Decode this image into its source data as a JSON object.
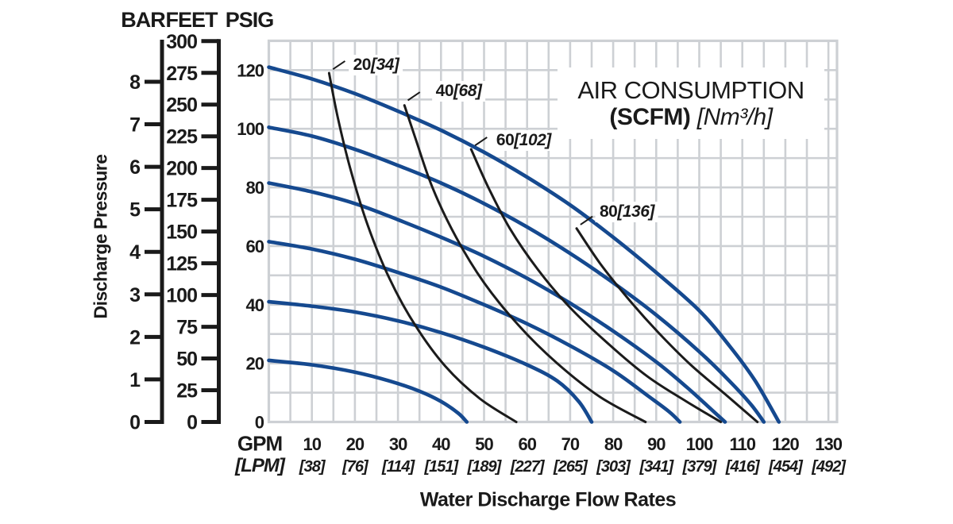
{
  "title": {
    "line1": "AIR CONSUMPTION",
    "scfm": "(SCFM)",
    "nm3h": "[Nm³/h]"
  },
  "axes": {
    "x_title": "Water Discharge Flow Rates",
    "y_title": "Discharge Pressure",
    "x": {
      "unit_primary": "GPM",
      "unit_secondary": "[LPM]",
      "gpm_ticks": [
        10,
        20,
        30,
        40,
        50,
        60,
        70,
        80,
        90,
        100,
        110,
        120,
        130
      ],
      "lpm_ticks": [
        "[38]",
        "[76]",
        "[114]",
        "[151]",
        "[189]",
        "[227]",
        "[265]",
        "[303]",
        "[341]",
        "[379]",
        "[416]",
        "[454]",
        "[492]"
      ]
    },
    "y": {
      "bar": {
        "header": "BAR",
        "ticks": [
          0,
          1,
          2,
          3,
          4,
          5,
          6,
          7,
          8
        ]
      },
      "feet": {
        "header": "FEET",
        "ticks": [
          0,
          25,
          50,
          75,
          100,
          125,
          150,
          175,
          200,
          225,
          250,
          275,
          300
        ]
      },
      "psig": {
        "header": "PSIG",
        "ticks": [
          0,
          20,
          40,
          60,
          80,
          100,
          120
        ]
      }
    }
  },
  "chart_data": {
    "type": "line",
    "x_unit": "GPM",
    "y_unit": "PSIG",
    "xlim": [
      0,
      132
    ],
    "ylim": [
      0,
      130
    ],
    "grid": {
      "x_step": 5,
      "y_step": 10,
      "on": true
    },
    "performance_curves": [
      {
        "name": "120 psig air supply",
        "air_psig": 120,
        "points": [
          [
            0,
            121
          ],
          [
            10,
            117
          ],
          [
            20,
            112
          ],
          [
            30,
            106
          ],
          [
            40,
            99.5
          ],
          [
            50,
            92
          ],
          [
            60,
            83.5
          ],
          [
            70,
            74
          ],
          [
            80,
            63
          ],
          [
            90,
            51
          ],
          [
            100,
            38
          ],
          [
            107,
            26
          ],
          [
            113,
            14
          ],
          [
            118.5,
            0
          ]
        ]
      },
      {
        "name": "100 psig air supply",
        "air_psig": 100,
        "points": [
          [
            0,
            100.5
          ],
          [
            10,
            97.5
          ],
          [
            20,
            93
          ],
          [
            30,
            87.5
          ],
          [
            40,
            81.5
          ],
          [
            50,
            74.5
          ],
          [
            60,
            66.5
          ],
          [
            70,
            57.5
          ],
          [
            80,
            47.5
          ],
          [
            90,
            36.5
          ],
          [
            100,
            24
          ],
          [
            107,
            14
          ],
          [
            112,
            6
          ],
          [
            115,
            0
          ]
        ]
      },
      {
        "name": "80 psig air supply",
        "air_psig": 80,
        "points": [
          [
            0,
            81.5
          ],
          [
            10,
            78.5
          ],
          [
            20,
            74.5
          ],
          [
            30,
            69
          ],
          [
            40,
            63
          ],
          [
            50,
            56.5
          ],
          [
            60,
            49
          ],
          [
            70,
            40.5
          ],
          [
            80,
            31
          ],
          [
            90,
            20.5
          ],
          [
            97,
            12
          ],
          [
            103,
            4
          ],
          [
            106,
            0
          ]
        ]
      },
      {
        "name": "60 psig air supply",
        "air_psig": 60,
        "points": [
          [
            0,
            61.5
          ],
          [
            10,
            59
          ],
          [
            20,
            55.5
          ],
          [
            30,
            51
          ],
          [
            40,
            46
          ],
          [
            50,
            40
          ],
          [
            60,
            33.5
          ],
          [
            70,
            26
          ],
          [
            80,
            17.5
          ],
          [
            88,
            9
          ],
          [
            93,
            3.5
          ],
          [
            95.5,
            0
          ]
        ]
      },
      {
        "name": "40 psig air supply",
        "air_psig": 40,
        "points": [
          [
            0,
            41
          ],
          [
            10,
            39.5
          ],
          [
            20,
            37.5
          ],
          [
            30,
            34.5
          ],
          [
            40,
            30.5
          ],
          [
            50,
            25.5
          ],
          [
            60,
            19.5
          ],
          [
            67,
            14
          ],
          [
            72,
            7
          ],
          [
            75,
            0
          ]
        ]
      },
      {
        "name": "20 psig air supply",
        "air_psig": 20,
        "points": [
          [
            0,
            21
          ],
          [
            10,
            19.5
          ],
          [
            20,
            17
          ],
          [
            28,
            14
          ],
          [
            35,
            10.5
          ],
          [
            40,
            7
          ],
          [
            44,
            3
          ],
          [
            46,
            0
          ]
        ]
      }
    ],
    "air_consumption_curves": [
      {
        "scfm": "20",
        "nm3h": "[34]",
        "points": [
          [
            14,
            119
          ],
          [
            16,
            104
          ],
          [
            19,
            86
          ],
          [
            23,
            67
          ],
          [
            28,
            49
          ],
          [
            34,
            33
          ],
          [
            41,
            19
          ],
          [
            49,
            8
          ],
          [
            57.5,
            0
          ]
        ],
        "label_center": [
          24.9,
          121.7
        ],
        "leader": [
          [
            14.9,
            120.3
          ],
          [
            17.7,
            123.1
          ]
        ]
      },
      {
        "scfm": "40",
        "nm3h": "[68]",
        "points": [
          [
            31.5,
            108
          ],
          [
            34,
            97
          ],
          [
            38,
            80
          ],
          [
            43.5,
            63
          ],
          [
            50,
            47.5
          ],
          [
            58,
            33
          ],
          [
            67,
            20
          ],
          [
            77,
            8.5
          ],
          [
            87.5,
            0
          ]
        ],
        "label_center": [
          44.1,
          112.8
        ],
        "leader": [
          [
            32.3,
            109.7
          ],
          [
            35.1,
            112.5
          ]
        ]
      },
      {
        "scfm": "60",
        "nm3h": "[102]",
        "points": [
          [
            47,
            93
          ],
          [
            51,
            80
          ],
          [
            56,
            66
          ],
          [
            62.5,
            52
          ],
          [
            70,
            39
          ],
          [
            79,
            26.5
          ],
          [
            88,
            15.5
          ],
          [
            97,
            7
          ],
          [
            105,
            0
          ]
        ],
        "label_center": [
          59.2,
          96.0
        ],
        "leader": [
          [
            47.9,
            94.3
          ],
          [
            50.7,
            97.1
          ]
        ]
      },
      {
        "scfm": "80",
        "nm3h": "[136]",
        "points": [
          [
            71.5,
            66
          ],
          [
            77,
            54
          ],
          [
            83.5,
            42
          ],
          [
            90.5,
            30.5
          ],
          [
            98,
            19.5
          ],
          [
            106,
            9.5
          ],
          [
            113.5,
            0
          ]
        ],
        "label_center": [
          83.2,
          71.6
        ],
        "leader": [
          [
            72.4,
            67.3
          ],
          [
            75.2,
            70.1
          ]
        ]
      }
    ]
  },
  "colors": {
    "curve_blue": "#15498f",
    "curve_black": "#1b1b1b",
    "grid": "#cdd0d4",
    "text": "#1a1a1a",
    "background": "#ffffff"
  }
}
